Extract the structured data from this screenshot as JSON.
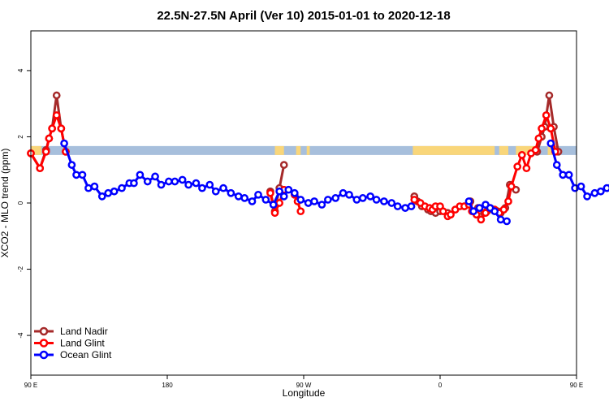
{
  "chart_data": {
    "type": "line",
    "title": "22.5N-27.5N April (Ver 10)   2015-01-01 to 2020-12-18",
    "xlabel": "Longitude",
    "ylabel": "XCO2 - MLO trend (ppm)",
    "xlim": [
      90,
      450
    ],
    "ylim": [
      -5.2,
      5.2
    ],
    "x_ticks": [
      {
        "value": 90,
        "label": "90 E"
      },
      {
        "value": 180,
        "label": "180"
      },
      {
        "value": 270,
        "label": "90 W"
      },
      {
        "value": 360,
        "label": "0"
      },
      {
        "value": 450,
        "label": "90 E"
      },
      {
        "value": 540,
        "label": "180"
      }
    ],
    "y_ticks": [
      {
        "value": -4,
        "label": "-4"
      },
      {
        "value": -2,
        "label": "-2"
      },
      {
        "value": 0,
        "label": "0"
      },
      {
        "value": 2,
        "label": "2"
      },
      {
        "value": 4,
        "label": "4"
      }
    ],
    "grid": false,
    "legend_position": "bottom-left",
    "surface_strip": {
      "y_range": [
        1.45,
        1.72
      ],
      "ocean_color": "#a7bfdc",
      "land_color": "#f9d67a",
      "land_segments": [
        [
          90,
          97
        ],
        [
          251,
          257
        ],
        [
          265,
          268
        ],
        [
          272,
          274
        ],
        [
          342,
          396
        ],
        [
          399,
          405
        ],
        [
          410,
          424
        ],
        [
          431,
          435
        ]
      ]
    },
    "series": [
      {
        "name": "Land Nadir",
        "color": "#a52a2a",
        "segments": [
          [
            [
              90,
              1.5
            ],
            [
              96,
              1.05
            ],
            [
              100,
              1.6
            ],
            [
              102,
              1.95
            ],
            [
              104,
              2.25
            ],
            [
              107,
              3.25
            ],
            [
              110,
              2.25
            ],
            [
              113,
              1.55
            ]
          ],
          [
            [
              248,
              0.35
            ],
            [
              251,
              -0.25
            ],
            [
              254,
              0.45
            ],
            [
              257,
              1.15
            ]
          ],
          [
            [
              343,
              0.2
            ],
            [
              345,
              0.05
            ]
          ],
          [
            [
              348,
              -0.1
            ],
            [
              352,
              -0.2
            ],
            [
              354,
              -0.25
            ],
            [
              357,
              -0.3
            ],
            [
              360,
              -0.25
            ],
            [
              365,
              -0.3
            ]
          ],
          [
            [
              376,
              -0.1
            ],
            [
              380,
              0.05
            ]
          ],
          [
            [
              385,
              -0.15
            ],
            [
              389,
              -0.3
            ],
            [
              391,
              -0.25
            ],
            [
              395,
              -0.2
            ],
            [
              398,
              -0.25
            ],
            [
              400,
              -0.3
            ]
          ],
          [
            [
              403,
              -0.15
            ],
            [
              406,
              0.55
            ],
            [
              410,
              0.4
            ]
          ],
          [
            [
              424,
              1.55
            ],
            [
              427,
              2.0
            ],
            [
              429,
              2.3
            ],
            [
              432,
              3.25
            ],
            [
              435,
              2.3
            ],
            [
              438,
              1.55
            ]
          ]
        ]
      },
      {
        "name": "Land Glint",
        "color": "#ff0000",
        "segments": [
          [
            [
              90,
              1.5
            ],
            [
              96,
              1.05
            ],
            [
              100,
              1.55
            ],
            [
              102,
              1.95
            ],
            [
              104,
              2.25
            ],
            [
              107,
              2.65
            ],
            [
              110,
              2.25
            ],
            [
              113,
              1.55
            ]
          ],
          [
            [
              248,
              0.3
            ],
            [
              251,
              -0.3
            ],
            [
              254,
              0.0
            ],
            [
              257,
              0.4
            ]
          ],
          [
            [
              264,
              0.25
            ],
            [
              266,
              0.05
            ],
            [
              268,
              -0.25
            ]
          ],
          [
            [
              343,
              0.1
            ],
            [
              347,
              0.0
            ],
            [
              350,
              -0.1
            ],
            [
              353,
              -0.15
            ],
            [
              355,
              -0.2
            ],
            [
              357,
              -0.1
            ],
            [
              360,
              -0.1
            ],
            [
              362,
              -0.25
            ],
            [
              365,
              -0.4
            ],
            [
              367,
              -0.35
            ],
            [
              370,
              -0.2
            ],
            [
              373,
              -0.1
            ],
            [
              376,
              -0.1
            ],
            [
              379,
              -0.05
            ],
            [
              381,
              -0.25
            ],
            [
              384,
              -0.35
            ],
            [
              387,
              -0.5
            ],
            [
              390,
              -0.3
            ],
            [
              393,
              -0.15
            ],
            [
              396,
              -0.2
            ],
            [
              399,
              -0.3
            ],
            [
              402,
              -0.2
            ],
            [
              405,
              0.05
            ],
            [
              407,
              0.5
            ],
            [
              411,
              1.1
            ],
            [
              414,
              1.45
            ],
            [
              417,
              1.05
            ],
            [
              420,
              1.5
            ],
            [
              423,
              1.6
            ],
            [
              425,
              1.95
            ],
            [
              427,
              2.25
            ],
            [
              430,
              2.65
            ],
            [
              433,
              2.25
            ],
            [
              436,
              1.55
            ]
          ]
        ]
      },
      {
        "name": "Ocean Glint",
        "color": "#0000ff",
        "segments": [
          [
            [
              112,
              1.8
            ],
            [
              117,
              1.15
            ],
            [
              120,
              0.85
            ],
            [
              124,
              0.85
            ],
            [
              128,
              0.45
            ],
            [
              132,
              0.5
            ],
            [
              137,
              0.2
            ],
            [
              141,
              0.3
            ],
            [
              145,
              0.35
            ],
            [
              150,
              0.45
            ],
            [
              155,
              0.6
            ],
            [
              158,
              0.6
            ],
            [
              162,
              0.85
            ],
            [
              167,
              0.65
            ],
            [
              172,
              0.8
            ],
            [
              176,
              0.55
            ],
            [
              181,
              0.65
            ],
            [
              185,
              0.65
            ],
            [
              190,
              0.7
            ],
            [
              194,
              0.55
            ],
            [
              199,
              0.6
            ],
            [
              203,
              0.45
            ],
            [
              208,
              0.55
            ],
            [
              212,
              0.35
            ],
            [
              217,
              0.45
            ],
            [
              222,
              0.3
            ],
            [
              227,
              0.2
            ],
            [
              231,
              0.15
            ],
            [
              236,
              0.05
            ],
            [
              240,
              0.25
            ],
            [
              245,
              0.1
            ],
            [
              250,
              -0.05
            ],
            [
              254,
              0.35
            ],
            [
              257,
              0.2
            ],
            [
              260,
              0.4
            ],
            [
              264,
              0.3
            ],
            [
              268,
              0.1
            ],
            [
              273,
              0.0
            ],
            [
              277,
              0.05
            ],
            [
              282,
              -0.05
            ],
            [
              286,
              0.1
            ],
            [
              291,
              0.15
            ],
            [
              296,
              0.3
            ],
            [
              300,
              0.25
            ],
            [
              305,
              0.1
            ],
            [
              309,
              0.15
            ],
            [
              314,
              0.2
            ],
            [
              318,
              0.1
            ],
            [
              323,
              0.05
            ],
            [
              328,
              0.0
            ],
            [
              332,
              -0.1
            ],
            [
              337,
              -0.15
            ],
            [
              341,
              -0.1
            ]
          ],
          [
            [
              379,
              0.05
            ],
            [
              382,
              -0.25
            ],
            [
              386,
              -0.15
            ],
            [
              390,
              -0.05
            ],
            [
              393,
              -0.15
            ],
            [
              396,
              -0.25
            ],
            [
              400,
              -0.5
            ],
            [
              404,
              -0.55
            ]
          ],
          [
            [
              433,
              1.8
            ],
            [
              437,
              1.15
            ],
            [
              441,
              0.85
            ],
            [
              445,
              0.85
            ],
            [
              449,
              0.45
            ],
            [
              453,
              0.5
            ],
            [
              457,
              0.2
            ],
            [
              462,
              0.3
            ],
            [
              466,
              0.35
            ],
            [
              470,
              0.45
            ],
            [
              474,
              0.65
            ],
            [
              478,
              0.6
            ],
            [
              482,
              0.85
            ]
          ]
        ]
      }
    ]
  }
}
